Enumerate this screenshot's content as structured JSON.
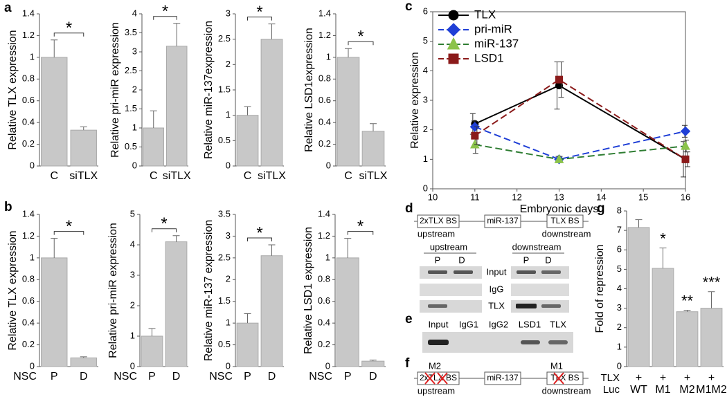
{
  "panel_labels": [
    "a",
    "b",
    "c",
    "d",
    "e",
    "f",
    "g"
  ],
  "chart_data": [
    {
      "type": "bar",
      "ylabel": "Relative TLX expression",
      "categories": [
        "C",
        "siTLX"
      ],
      "values": [
        1,
        0.33
      ],
      "errors": [
        0.16,
        0.03
      ],
      "ylim": [
        0,
        1.4
      ],
      "yticks": [
        0,
        0.2,
        0.4,
        0.6,
        0.8,
        1,
        1.2,
        1.4
      ],
      "sig": "*",
      "color": "#c8c8c8"
    },
    {
      "type": "bar",
      "ylabel": "Relative pri-miR expression",
      "categories": [
        "C",
        "siTLX"
      ],
      "values": [
        1,
        3.15
      ],
      "errors": [
        0.45,
        0.6
      ],
      "ylim": [
        0,
        4
      ],
      "yticks": [
        0,
        0.5,
        1,
        1.5,
        2,
        2.5,
        3,
        3.5,
        4
      ],
      "sig": "*",
      "color": "#c8c8c8"
    },
    {
      "type": "bar",
      "ylabel": "Relative miR-137expression",
      "categories": [
        "C",
        "siTLX"
      ],
      "values": [
        1,
        2.5
      ],
      "errors": [
        0.17,
        0.3
      ],
      "ylim": [
        0,
        3
      ],
      "yticks": [
        0,
        0.5,
        1,
        1.5,
        2,
        2.5,
        3
      ],
      "sig": "*",
      "color": "#c8c8c8"
    },
    {
      "type": "bar",
      "ylabel": "Relative LSD1expression",
      "categories": [
        "C",
        "siTLX"
      ],
      "values": [
        1,
        0.32
      ],
      "errors": [
        0.08,
        0.07
      ],
      "ylim": [
        0,
        1.4
      ],
      "yticks": [
        0,
        0.2,
        0.4,
        0.6,
        0.8,
        1,
        1.2,
        1.4
      ],
      "sig": "*",
      "color": "#c8c8c8"
    },
    {
      "type": "bar",
      "ylabel": "Relative TLX expression",
      "group_label": "NSC",
      "categories": [
        "P",
        "D"
      ],
      "values": [
        1,
        0.08
      ],
      "errors": [
        0.18,
        0.01
      ],
      "ylim": [
        0,
        1.4
      ],
      "yticks": [
        0,
        0.2,
        0.4,
        0.6,
        0.8,
        1,
        1.2,
        1.4
      ],
      "sig": "*",
      "color": "#c8c8c8"
    },
    {
      "type": "bar",
      "ylabel": "Relative pri-miR expression",
      "group_label": "NSC",
      "categories": [
        "P",
        "D"
      ],
      "values": [
        1,
        4.1
      ],
      "errors": [
        0.25,
        0.2
      ],
      "ylim": [
        0,
        5
      ],
      "yticks": [
        0,
        1,
        2,
        3,
        4,
        5
      ],
      "sig": "*",
      "color": "#c8c8c8"
    },
    {
      "type": "bar",
      "ylabel": "Relative miR-137 expression",
      "group_label": "NSC",
      "categories": [
        "P",
        "D"
      ],
      "values": [
        1,
        2.55
      ],
      "errors": [
        0.22,
        0.25
      ],
      "ylim": [
        0,
        3.5
      ],
      "yticks": [
        0,
        0.5,
        1,
        1.5,
        2,
        2.5,
        3,
        3.5
      ],
      "sig": "*",
      "color": "#c8c8c8"
    },
    {
      "type": "bar",
      "ylabel": "Relative LSD1 expression",
      "group_label": "NSC",
      "categories": [
        "P",
        "D"
      ],
      "values": [
        1,
        0.05
      ],
      "errors": [
        0.18,
        0.01
      ],
      "ylim": [
        0,
        1.4
      ],
      "yticks": [
        0,
        0.2,
        0.4,
        0.6,
        0.8,
        1,
        1.2,
        1.4
      ],
      "sig": "*",
      "color": "#c8c8c8"
    },
    {
      "type": "line",
      "xlabel": "Embryonic days",
      "ylabel": "Relative expression",
      "x": [
        11,
        13,
        16
      ],
      "xlim": [
        10,
        16
      ],
      "xticks": [
        10,
        11,
        12,
        13,
        14,
        15,
        16
      ],
      "ylim": [
        0,
        6
      ],
      "yticks": [
        0,
        1,
        2,
        3,
        4,
        5,
        6
      ],
      "series": [
        {
          "name": "TLX",
          "color": "#000000",
          "marker": "circle",
          "dash": false,
          "values": [
            2.2,
            3.5,
            1.0
          ],
          "errors": [
            0.35,
            0.8,
            0.6
          ]
        },
        {
          "name": "pri-miR",
          "color": "#1f3fd6",
          "marker": "diamond",
          "dash": true,
          "values": [
            2.1,
            1.0,
            1.95
          ],
          "errors": [
            0.2,
            0.1,
            0.2
          ]
        },
        {
          "name": "miR-137",
          "color": "#2e7d32",
          "marker": "triangle",
          "marker_color": "#8bc34a",
          "dash": true,
          "values": [
            1.5,
            1.0,
            1.45
          ],
          "errors": [
            0.3,
            0.1,
            0.2
          ]
        },
        {
          "name": "LSD1",
          "color": "#8b1a1a",
          "marker": "square",
          "dash": true,
          "values": [
            1.8,
            3.7,
            1.0
          ],
          "errors": [
            0.3,
            0.6,
            0.25
          ]
        }
      ]
    },
    {
      "type": "bar",
      "ylabel": "Fold of repression",
      "row_label": "TLX",
      "row_values": [
        "+",
        "+",
        "+",
        "+"
      ],
      "category_label": "Luc",
      "categories": [
        "WT",
        "M1",
        "M2",
        "M1M2"
      ],
      "values": [
        7.15,
        5.05,
        2.82,
        3.0
      ],
      "errors": [
        0.4,
        1.05,
        0.08,
        0.85
      ],
      "point_sig": [
        null,
        "*",
        "**",
        "***"
      ],
      "ylim": [
        0,
        8
      ],
      "yticks": [
        0,
        1,
        2,
        3,
        4,
        5,
        6,
        7,
        8
      ],
      "color": "#c8c8c8"
    }
  ],
  "diagram_d": {
    "boxes": [
      "2xTLX BS",
      "miR-137",
      "TLX BS"
    ],
    "upstream": "upstream",
    "downstream": "downstream"
  },
  "gel_d": {
    "groups": [
      "upstream",
      "downstream"
    ],
    "lanes": [
      "P",
      "D",
      "P",
      "D"
    ],
    "rows": [
      "Input",
      "IgG",
      "TLX"
    ]
  },
  "gel_e": {
    "lanes": [
      "Input",
      "IgG1",
      "IgG2",
      "LSD1",
      "TLX"
    ]
  },
  "diagram_f": {
    "boxes": [
      "2xTLX BS",
      "miR-137",
      "TLX BS"
    ],
    "mutants": [
      "M2",
      "M1"
    ],
    "upstream": "upstream",
    "downstream": "downstream"
  }
}
